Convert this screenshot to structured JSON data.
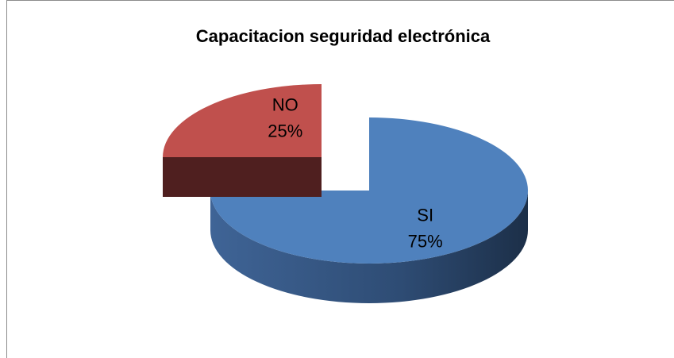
{
  "chart_data": {
    "type": "pie",
    "title": "Capacitacion seguridad electrónica",
    "categories": [
      "SI",
      "NO"
    ],
    "values": [
      75,
      25
    ],
    "value_labels": [
      "75%",
      "25%"
    ],
    "colors": [
      "#4f81bd",
      "#c0504d"
    ]
  }
}
